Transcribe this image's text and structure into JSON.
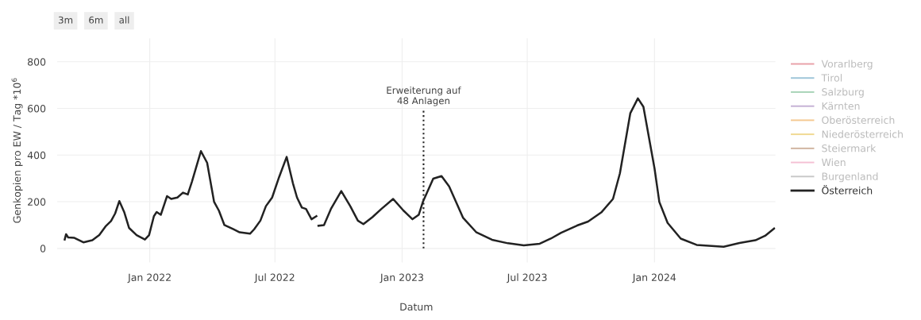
{
  "chart_data": {
    "type": "line",
    "xlabel": "Datum",
    "ylabel": "Genkopien pro EW / Tag *10$^{6}$",
    "annotations": [
      "3m",
      "6m",
      "all"
    ],
    "ref_lines": [
      {
        "axis": "x",
        "value": "2023-02-01",
        "label": "Erweiterung auf\n48 Anlagen",
        "color": "#222222",
        "line_style": "dotted"
      }
    ],
    "xlim": [
      "2021-08-20",
      "2024-06-24"
    ],
    "xticks": [
      {
        "value": "2022-01-01",
        "label": "Jan 2022"
      },
      {
        "value": "2022-07-01",
        "label": "Jul 2022"
      },
      {
        "value": "2023-01-01",
        "label": "Jan 2023"
      },
      {
        "value": "2023-07-01",
        "label": "Jul 2023"
      },
      {
        "value": "2024-01-01",
        "label": "Jan 2024"
      }
    ],
    "ylim": [
      -60,
      900
    ],
    "yticks": [
      0,
      200,
      400,
      600,
      800
    ],
    "grid": true,
    "legend": "right",
    "line_style": "solid",
    "marker": "none",
    "series": [
      {
        "name": "Vorarlberg",
        "color": "#e8a0a8"
      },
      {
        "name": "Tirol",
        "color": "#9cc4d8"
      },
      {
        "name": "Salzburg",
        "color": "#a8d4b8"
      },
      {
        "name": "Kärnten",
        "color": "#c4b0d4"
      },
      {
        "name": "Oberösterreich",
        "color": "#f4c890"
      },
      {
        "name": "Niederösterreich",
        "color": "#f0d890"
      },
      {
        "name": "Steiermark",
        "color": "#d0b4a0"
      },
      {
        "name": "Wien",
        "color": "#f4c0d4"
      },
      {
        "name": "Burgenland",
        "color": "#c8c8c8"
      },
      {
        "name": "Österreich",
        "color": "#222222",
        "x": [
          "2021-08-31",
          "2021-09-02",
          "2021-09-05",
          "2021-09-14",
          "2021-09-27",
          "2021-10-10",
          "2021-10-20",
          "2021-10-29",
          "2021-11-06",
          "2021-11-12",
          "2021-11-18",
          "2021-11-25",
          "2021-12-02",
          "2021-12-13",
          "2021-12-25",
          "2021-12-31",
          "2022-01-07",
          "2022-01-11",
          "2022-01-17",
          "2022-01-26",
          "2022-02-01",
          "2022-02-10",
          "2022-02-18",
          "2022-02-25",
          "2022-03-03",
          "2022-03-16",
          "2022-03-25",
          "2022-04-04",
          "2022-04-11",
          "2022-04-19",
          "2022-05-02",
          "2022-05-11",
          "2022-05-26",
          "2022-06-01",
          "2022-06-10",
          "2022-06-18",
          "2022-06-27",
          "2022-07-07",
          "2022-07-18",
          "2022-07-27",
          "2022-08-02",
          "2022-08-09",
          "2022-08-15",
          "2022-08-23",
          "2022-08-30",
          "2022-09-01",
          "2022-09-02",
          "2022-09-10",
          "2022-09-20",
          "2022-10-05",
          "2022-10-18",
          "2022-10-29",
          "2022-11-06",
          "2022-11-19",
          "2022-12-02",
          "2022-12-19",
          "2023-01-03",
          "2023-01-16",
          "2023-01-25",
          "2023-01-31",
          "2023-02-15",
          "2023-02-27",
          "2023-03-10",
          "2023-03-30",
          "2023-04-18",
          "2023-05-11",
          "2023-06-03",
          "2023-06-26",
          "2023-07-19",
          "2023-08-04",
          "2023-08-19",
          "2023-09-11",
          "2023-09-27",
          "2023-10-16",
          "2023-11-02",
          "2023-11-12",
          "2023-11-27",
          "2023-12-08",
          "2023-12-16",
          "2024-01-01",
          "2024-01-08",
          "2024-01-20",
          "2024-02-08",
          "2024-03-02",
          "2024-04-10",
          "2024-05-03",
          "2024-05-26",
          "2024-06-09",
          "2024-06-22"
        ],
        "values": [
          38,
          61,
          47,
          45,
          26,
          35,
          57,
          94,
          117,
          150,
          203,
          156,
          88,
          57,
          38,
          57,
          138,
          156,
          144,
          224,
          212,
          218,
          239,
          231,
          286,
          417,
          367,
          200,
          162,
          100,
          82,
          69,
          63,
          82,
          119,
          181,
          218,
          305,
          392,
          280,
          218,
          175,
          169,
          125,
          138,
          null,
          97,
          100,
          169,
          246,
          181,
          119,
          104,
          134,
          169,
          212,
          162,
          125,
          144,
          199,
          299,
          310,
          266,
          132,
          70,
          37,
          22,
          13,
          20,
          42,
          67,
          98,
          115,
          154,
          212,
          322,
          579,
          643,
          607,
          344,
          199,
          109,
          42,
          15,
          7,
          23,
          35,
          54,
          85
        ]
      }
    ]
  }
}
